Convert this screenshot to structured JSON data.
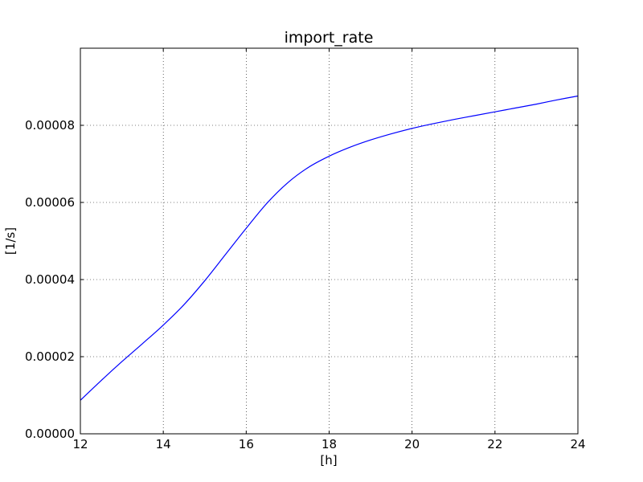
{
  "chart_data": {
    "type": "line",
    "title": "import_rate",
    "xlabel": "[h]",
    "ylabel": "[1/s]",
    "xlim": [
      12,
      24
    ],
    "ylim": [
      0,
      0.0001
    ],
    "grid": true,
    "x_ticks": [
      12,
      14,
      16,
      18,
      20,
      22,
      24
    ],
    "x_tick_labels": [
      "12",
      "14",
      "16",
      "18",
      "20",
      "22",
      "24"
    ],
    "y_ticks": [
      0,
      2e-05,
      4e-05,
      6e-05,
      8e-05
    ],
    "y_tick_labels": [
      "0.00000",
      "0.00002",
      "0.00004",
      "0.00006",
      "0.00008"
    ],
    "series": [
      {
        "color": "#0000ff",
        "x": [
          12,
          12.5,
          13,
          13.5,
          14,
          14.5,
          15,
          15.5,
          16,
          16.5,
          17,
          17.5,
          18,
          18.5,
          19,
          19.5,
          20,
          20.5,
          21,
          21.5,
          22,
          22.5,
          23,
          23.5,
          24
        ],
        "y": [
          8.7e-06,
          1.38e-05,
          1.87e-05,
          2.34e-05,
          2.82e-05,
          3.35e-05,
          3.97e-05,
          4.65e-05,
          5.33e-05,
          5.98e-05,
          6.51e-05,
          6.91e-05,
          7.2e-05,
          7.43e-05,
          7.62e-05,
          7.78e-05,
          7.92e-05,
          8.04e-05,
          8.15e-05,
          8.25e-05,
          8.35e-05,
          8.45e-05,
          8.55e-05,
          8.66e-05,
          8.76e-05
        ]
      }
    ]
  }
}
